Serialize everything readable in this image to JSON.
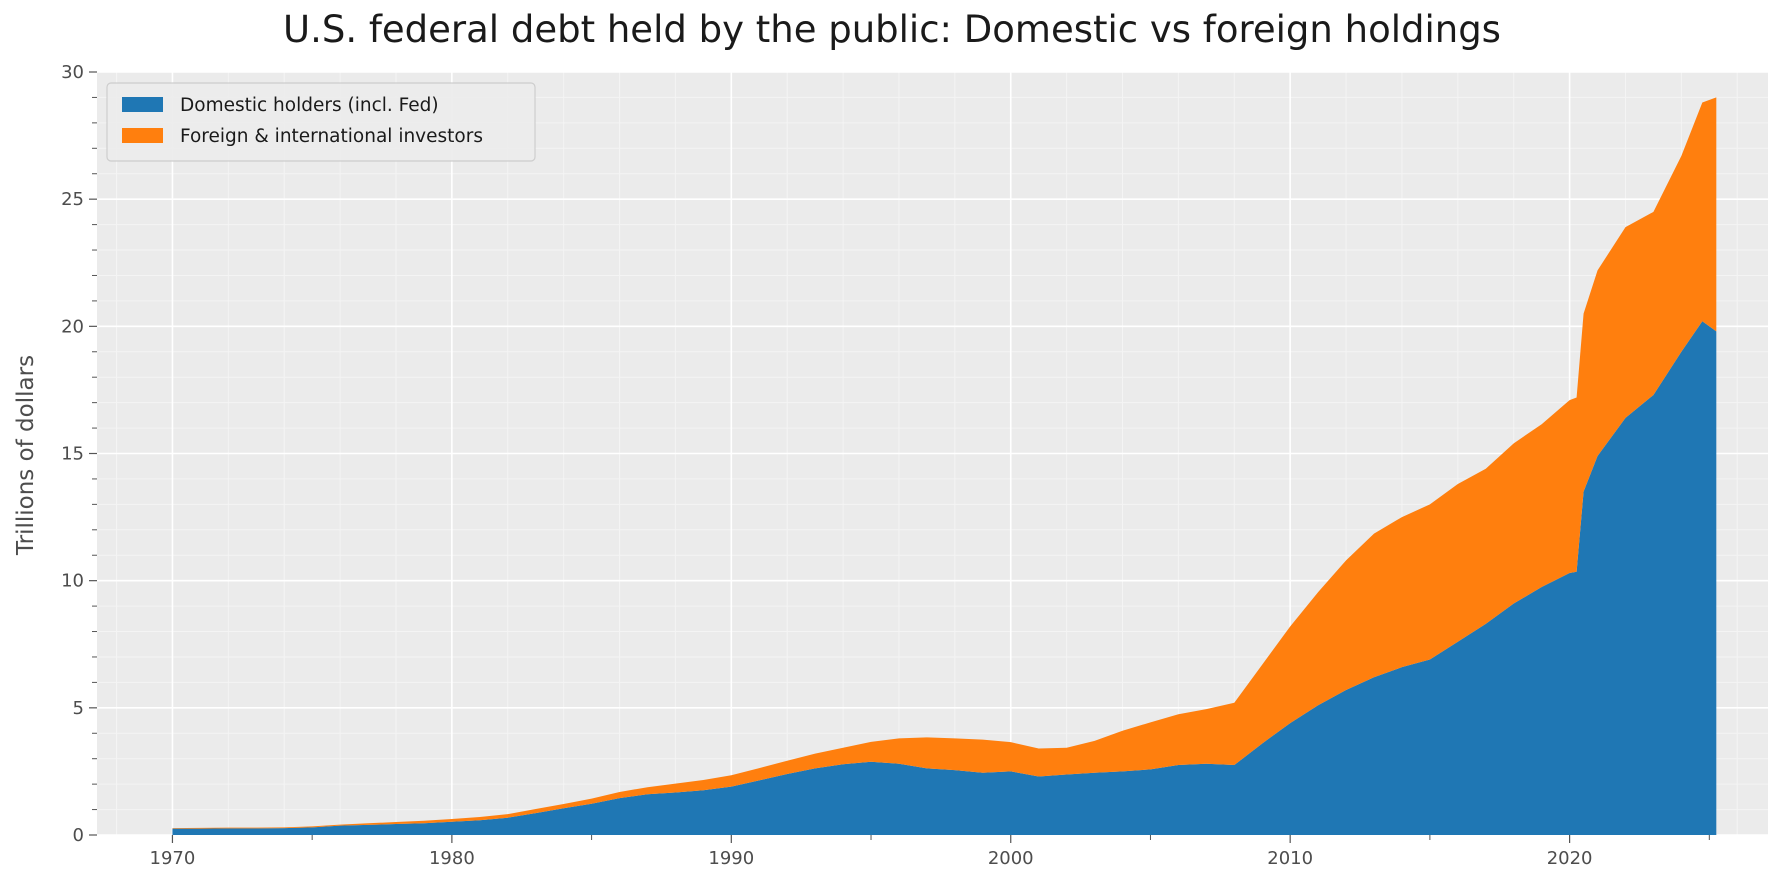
{
  "chart_data": {
    "type": "area",
    "stacked": true,
    "title": "U.S. federal debt held by the public: Domestic vs foreign holdings",
    "xlabel": "",
    "ylabel": "Trillions of dollars",
    "xlim": [
      1967.3,
      2027.1
    ],
    "ylim": [
      0,
      30
    ],
    "x_ticks": [
      1970,
      1980,
      1990,
      2000,
      2010,
      2020
    ],
    "y_ticks": [
      0,
      5,
      10,
      15,
      20,
      25,
      30
    ],
    "grid": true,
    "legend_position": "top-left",
    "x": [
      1970,
      1971,
      1972,
      1973,
      1974,
      1975,
      1976,
      1977,
      1978,
      1979,
      1980,
      1981,
      1982,
      1983,
      1984,
      1985,
      1986,
      1987,
      1988,
      1989,
      1990,
      1991,
      1992,
      1993,
      1994,
      1995,
      1996,
      1997,
      1998,
      1999,
      2000,
      2001,
      2002,
      2003,
      2004,
      2005,
      2006,
      2007,
      2008,
      2009,
      2010,
      2011,
      2012,
      2013,
      2014,
      2015,
      2016,
      2017,
      2018,
      2019,
      2020,
      2020.25,
      2020.5,
      2021,
      2022,
      2023,
      2024,
      2024.75,
      2025.25
    ],
    "series": [
      {
        "name": "Domestic holders (incl. Fed)",
        "color": "#1f77b4",
        "values": [
          0.25,
          0.25,
          0.26,
          0.26,
          0.27,
          0.3,
          0.37,
          0.4,
          0.43,
          0.46,
          0.52,
          0.58,
          0.68,
          0.86,
          1.05,
          1.23,
          1.45,
          1.6,
          1.67,
          1.76,
          1.9,
          2.15,
          2.4,
          2.62,
          2.78,
          2.88,
          2.8,
          2.62,
          2.55,
          2.45,
          2.5,
          2.3,
          2.38,
          2.45,
          2.5,
          2.58,
          2.75,
          2.8,
          2.75,
          3.6,
          4.4,
          5.1,
          5.7,
          6.2,
          6.6,
          6.9,
          7.6,
          8.3,
          9.1,
          9.75,
          10.3,
          10.35,
          13.5,
          14.9,
          16.4,
          17.3,
          19.0,
          20.2,
          19.8
        ]
      },
      {
        "name": "Foreign & international investors",
        "color": "#ff7f0e",
        "values": [
          0.02,
          0.03,
          0.03,
          0.03,
          0.03,
          0.04,
          0.04,
          0.06,
          0.08,
          0.1,
          0.11,
          0.13,
          0.14,
          0.16,
          0.17,
          0.2,
          0.24,
          0.28,
          0.35,
          0.4,
          0.45,
          0.48,
          0.52,
          0.58,
          0.65,
          0.78,
          1.0,
          1.22,
          1.25,
          1.3,
          1.15,
          1.1,
          1.05,
          1.25,
          1.6,
          1.85,
          2.0,
          2.15,
          2.45,
          3.1,
          3.8,
          4.45,
          5.1,
          5.65,
          5.9,
          6.1,
          6.2,
          6.1,
          6.3,
          6.4,
          6.8,
          6.85,
          7.0,
          7.3,
          7.5,
          7.2,
          7.7,
          8.6,
          9.2
        ]
      }
    ]
  }
}
